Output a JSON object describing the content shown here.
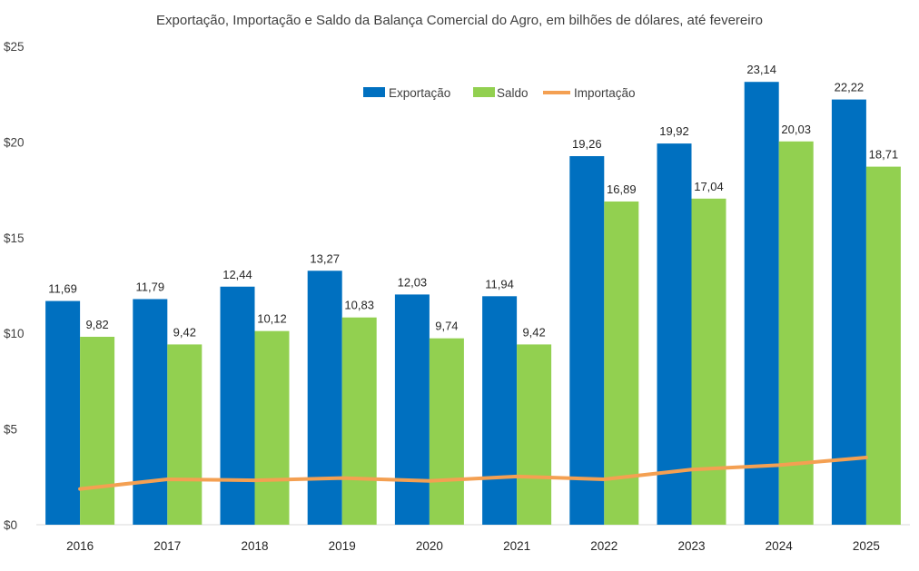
{
  "chart_data": {
    "type": "bar",
    "title": "Exportação, Importação e Saldo da Balança Comercial do Agro, em bilhões de dólares, até fevereiro",
    "categories": [
      "2016",
      "2017",
      "2018",
      "2019",
      "2020",
      "2021",
      "2022",
      "2023",
      "2024",
      "2025"
    ],
    "y_tick_labels": [
      "$0",
      "$5",
      "$10",
      "$15",
      "$20",
      "$25"
    ],
    "y_tick_values": [
      0,
      5,
      10,
      15,
      20,
      25
    ],
    "ylim": [
      0,
      25
    ],
    "grid": false,
    "legend_position": "top-right",
    "series": [
      {
        "name": "Exportação",
        "kind": "bar",
        "color": "#0070c0",
        "values": [
          11.69,
          11.79,
          12.44,
          13.27,
          12.03,
          11.94,
          19.26,
          19.92,
          23.14,
          22.22
        ],
        "labels": [
          "11,69",
          "11,79",
          "12,44",
          "13,27",
          "12,03",
          "11,94",
          "19,26",
          "19,92",
          "23,14",
          "22,22"
        ]
      },
      {
        "name": "Saldo",
        "kind": "bar",
        "color": "#92d050",
        "values": [
          9.82,
          9.42,
          10.12,
          10.83,
          9.74,
          9.42,
          16.89,
          17.04,
          20.03,
          18.71
        ],
        "labels": [
          "9,82",
          "9,42",
          "10,12",
          "10,83",
          "9,74",
          "9,42",
          "16,89",
          "17,04",
          "20,03",
          "18,71"
        ]
      },
      {
        "name": "Importação",
        "kind": "line",
        "color": "#f4a052",
        "values": [
          1.87,
          2.37,
          2.32,
          2.44,
          2.29,
          2.52,
          2.37,
          2.88,
          3.11,
          3.51
        ]
      }
    ]
  }
}
